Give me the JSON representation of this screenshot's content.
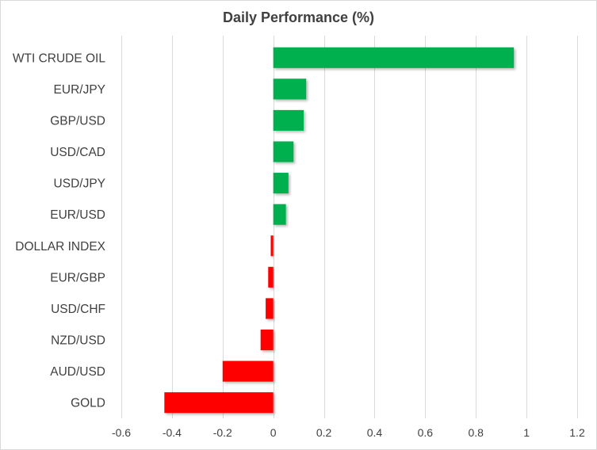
{
  "chart_data": {
    "type": "bar",
    "orientation": "horizontal",
    "title": "Daily Performance  (%)",
    "categories": [
      "WTI CRUDE OIL",
      "EUR/JPY",
      "GBP/USD",
      "USD/CAD",
      "USD/JPY",
      "EUR/USD",
      "DOLLAR INDEX",
      "EUR/GBP",
      "USD/CHF",
      "NZD/USD",
      "AUD/USD",
      "GOLD"
    ],
    "values": [
      0.95,
      0.13,
      0.12,
      0.08,
      0.06,
      0.05,
      -0.01,
      -0.02,
      -0.03,
      -0.05,
      -0.2,
      -0.43
    ],
    "xlim": [
      -0.6,
      1.2
    ],
    "xticks": [
      -0.6,
      -0.4,
      -0.2,
      0,
      0.2,
      0.4,
      0.6,
      0.8,
      1,
      1.2
    ],
    "xtick_labels": [
      "-0.6",
      "-0.4",
      "-0.2",
      "0",
      "0.2",
      "0.4",
      "0.6",
      "0.8",
      "1",
      "1.2"
    ],
    "xlabel": "",
    "ylabel": "",
    "grid": "vertical",
    "legend": "none",
    "colors": {
      "positive": "#00b050",
      "negative": "#ff0000",
      "grid": "#d9d9d9",
      "text": "#404040"
    }
  }
}
